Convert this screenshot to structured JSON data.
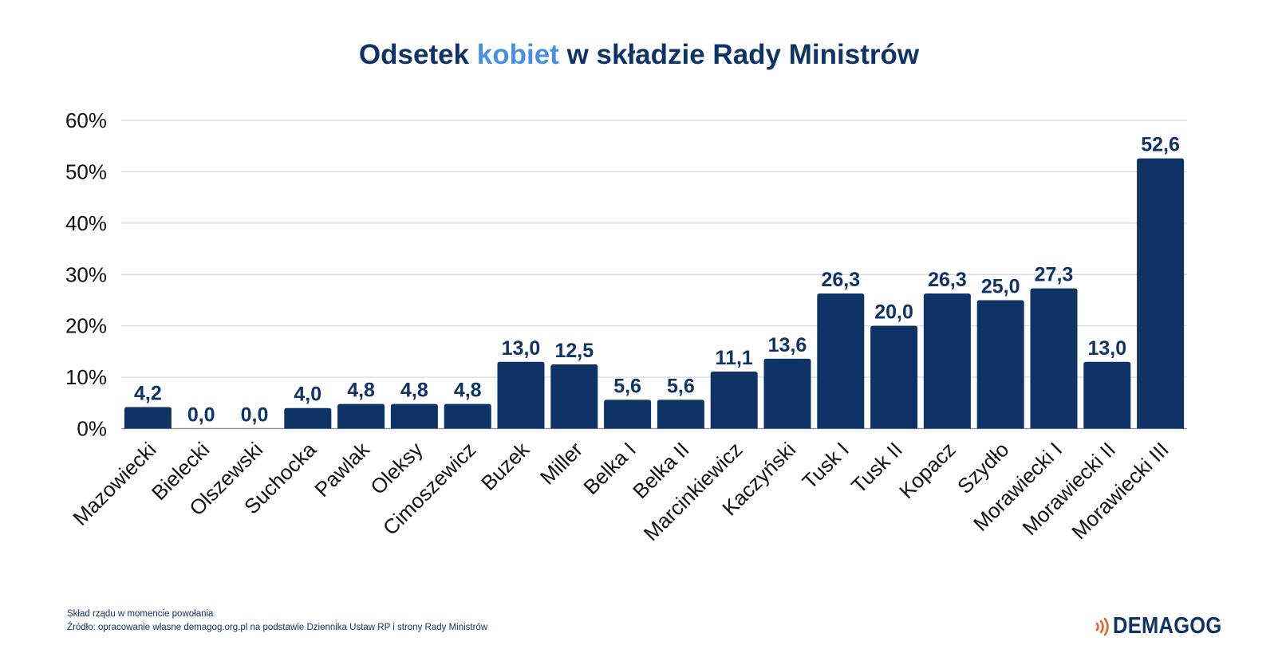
{
  "title": {
    "part1": "Odsetek ",
    "part2": "kobiet",
    "part3": " w składzie Rady Ministrów"
  },
  "colors": {
    "bar": "#0e3366",
    "title_dark": "#0e3366",
    "title_accent": "#4a90e2",
    "gridline": "#d4d4d4",
    "logo_accent": "#e8642c"
  },
  "chart_data": {
    "type": "bar",
    "title": "Odsetek kobiet w składzie Rady Ministrów",
    "xlabel": "",
    "ylabel": "",
    "ylim": [
      0,
      60
    ],
    "yticks": [
      {
        "value": 0,
        "label": "0%"
      },
      {
        "value": 10,
        "label": "10%"
      },
      {
        "value": 20,
        "label": "20%"
      },
      {
        "value": 30,
        "label": "30%"
      },
      {
        "value": 40,
        "label": "40%"
      },
      {
        "value": 50,
        "label": "50%"
      },
      {
        "value": 60,
        "label": "60%"
      }
    ],
    "grid": true,
    "legend": "none",
    "categories": [
      "Mazowiecki",
      "Bielecki",
      "Olszewski",
      "Suchocka",
      "Pawlak",
      "Oleksy",
      "Cimoszewicz",
      "Buzek",
      "Miller",
      "Belka I",
      "Belka II",
      "Marcinkiewicz",
      "Kaczyński",
      "Tusk I",
      "Tusk II",
      "Kopacz",
      "Szydło",
      "Morawiecki I",
      "Morawiecki II",
      "Morawiecki III"
    ],
    "values": [
      4.2,
      0.0,
      0.0,
      4.0,
      4.8,
      4.8,
      4.8,
      13.0,
      12.5,
      5.6,
      5.6,
      11.1,
      13.6,
      26.3,
      20.0,
      26.3,
      25.0,
      27.3,
      13.0,
      52.6
    ],
    "value_labels": [
      "4,2",
      "0,0",
      "0,0",
      "4,0",
      "4,8",
      "4,8",
      "4,8",
      "13,0",
      "12,5",
      "5,6",
      "5,6",
      "11,1",
      "13,6",
      "26,3",
      "20,0",
      "26,3",
      "25,0",
      "27,3",
      "13,0",
      "52,6"
    ]
  },
  "footnotes": {
    "line1": "Skład rządu w momencie powołania",
    "line2": "Źródło: opracowanie własne demagog.org.pl na podstawie Dziennika Ustaw RP i strony Rady Ministrów"
  },
  "logo": {
    "text": "DEMAGOG",
    "icon": "sound-waves-icon"
  }
}
